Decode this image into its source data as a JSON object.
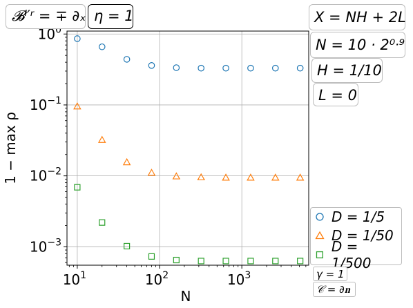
{
  "chart_data": {
    "type": "scatter",
    "x_scale": "log",
    "y_scale": "log",
    "xlim": [
      7.5,
      6500
    ],
    "ylim": [
      0.00055,
      1.1
    ],
    "xlabel": "N",
    "ylabel": "1 − max ρ",
    "grid": true,
    "x_ticks": [
      {
        "value": 10,
        "base": "10",
        "exp": "1"
      },
      {
        "value": 100,
        "base": "10",
        "exp": "2"
      },
      {
        "value": 1000,
        "base": "10",
        "exp": "3"
      }
    ],
    "y_ticks": [
      {
        "value": 1,
        "base": "10",
        "exp": "0"
      },
      {
        "value": 0.1,
        "base": "10",
        "exp": "−1"
      },
      {
        "value": 0.01,
        "base": "10",
        "exp": "−2"
      },
      {
        "value": 0.001,
        "base": "10",
        "exp": "−3"
      }
    ],
    "x": [
      10,
      20,
      40,
      80,
      160,
      320,
      640,
      1280,
      2560,
      5120
    ],
    "series": [
      {
        "name": "D = 1/5",
        "marker": "circle",
        "color": "#1f77b4",
        "values": [
          0.86,
          0.66,
          0.44,
          0.36,
          0.335,
          0.33,
          0.33,
          0.33,
          0.33,
          0.33
        ]
      },
      {
        "name": "D = 1/50",
        "marker": "triangle",
        "color": "#ff7f0e",
        "values": [
          0.095,
          0.032,
          0.0155,
          0.011,
          0.0098,
          0.0095,
          0.0094,
          0.0094,
          0.0094,
          0.0094
        ]
      },
      {
        "name": "D = 1/500",
        "marker": "square",
        "color": "#2ca02c",
        "values": [
          0.0069,
          0.0022,
          0.00102,
          0.00073,
          0.00065,
          0.00063,
          0.00063,
          0.00063,
          0.00063,
          0.00063
        ]
      }
    ],
    "legend_position": "bottom-right outside",
    "annotations": {
      "top_left": [
        {
          "key": "bc",
          "text": "𝓑ˡ′ʳ = ∓ ∂ₓ",
          "style": "light"
        },
        {
          "key": "eta",
          "text": "η = 1",
          "style": "dark"
        }
      ],
      "right": [
        {
          "key": "X",
          "text": "X = NH + 2L"
        },
        {
          "key": "Nrange",
          "text": "N = 10 · 2⁰ᐧ⁹"
        },
        {
          "key": "H",
          "text": "H = 1/10"
        },
        {
          "key": "L",
          "text": "L = 0"
        }
      ],
      "bottom_right": [
        {
          "key": "gamma",
          "text": "γ = 1"
        },
        {
          "key": "C",
          "text": "𝒞 = ∂𝐧"
        }
      ]
    }
  }
}
